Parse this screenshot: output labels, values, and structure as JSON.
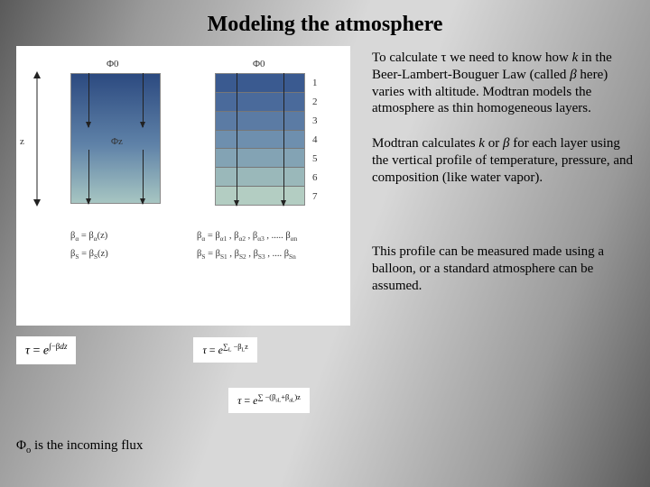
{
  "title": "Modeling the atmosphere",
  "paragraphs": {
    "p1_pre": "To calculate ",
    "p1_tau": "τ",
    "p1_a": " we need to know how ",
    "p1_k": "k",
    "p1_b": " in the Beer-Lambert-Bouguer Law (called ",
    "p1_beta": "β",
    "p1_c": " here) varies with altitude.  Modtran models the atmosphere as thin homogeneous layers.",
    "p2_a": "Modtran calculates ",
    "p2_k": "k",
    "p2_b": " or ",
    "p2_beta": "β",
    "p2_c": " for each layer using the vertical profile of temperature, pressure,  and composition (like water vapor).",
    "p3": "This profile can be measured made using a balloon, or a standard atmosphere can be assumed."
  },
  "diagram": {
    "z_label": "z",
    "phi0_left": "Φ0",
    "phi0_right": "Φ0",
    "phi_z": "Φz",
    "cont_gradient_top": "#2c4a80",
    "cont_gradient_mid": "#5f82a8",
    "cont_gradient_bot": "#a7c6c2",
    "layers": [
      {
        "n": "1",
        "color": "#3a5a90"
      },
      {
        "n": "2",
        "color": "#4a6a9b"
      },
      {
        "n": "3",
        "color": "#5b7ba4"
      },
      {
        "n": "4",
        "color": "#6e8fae"
      },
      {
        "n": "5",
        "color": "#83a3b4"
      },
      {
        "n": "6",
        "color": "#9ab8ba"
      },
      {
        "n": "7",
        "color": "#b3cdc2"
      }
    ],
    "eq_left_a": "βα = βα(z)",
    "eq_left_b": "βS = βS(z)",
    "eq_right_a": "βα = βα1 , βα2 , βα3 , ..... βαn",
    "eq_right_b": "βS = βS1 , βS2 , βS3 , ..... βSn"
  },
  "formulas": {
    "f1": "τ = e∫−βdz",
    "f2": "τ = e∑L −βLz",
    "f3": "τ = e∑−(βsL+βaL)z"
  },
  "caption_pre": "Φ",
  "caption_sub": "o",
  "caption_post": " is the incoming flux"
}
